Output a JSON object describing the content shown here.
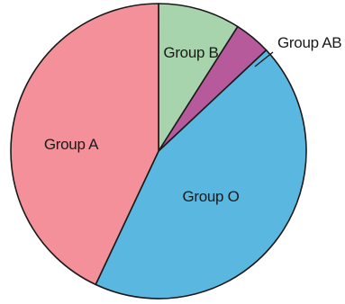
{
  "chart_data": {
    "type": "pie",
    "title": "",
    "start": "12 o'clock",
    "direction": "clockwise",
    "slices": [
      {
        "label": "Group B",
        "value": 9,
        "color": "#a8d4ad"
      },
      {
        "label": "Group AB",
        "value": 4,
        "color": "#b65a9c"
      },
      {
        "label": "Group O",
        "value": 44,
        "color": "#5ab8e0"
      },
      {
        "label": "Group A",
        "value": 43,
        "color": "#f4909a"
      }
    ],
    "legend": "none",
    "labels": "on-chart"
  }
}
